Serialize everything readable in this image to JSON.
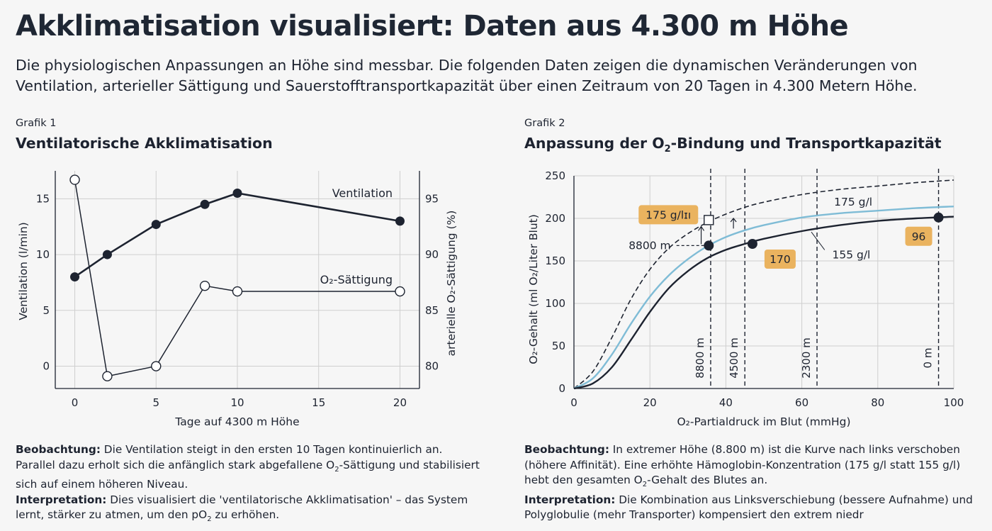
{
  "header": {
    "title": "Akklimatisation visualisiert: Daten aus 4.300 m Höhe",
    "subtitle": "Die physiologischen Anpassungen an Höhe sind messbar. Die folgenden Daten zeigen die dynamischen Veränderungen von Ventilation, arterieller Sättigung und Sauerstofftransportkapazität über einen Zeitraum von 20 Tagen in 4.300 Metern Höhe."
  },
  "figure1": {
    "label": "Grafik 1",
    "title": "Ventilatorische Akklimatisation",
    "caption": {
      "obs_label": "Beobachtung:",
      "obs_text_a": " Die Ventilation steigt in den ersten 10 Tagen kontinuierlich an. Parallel dazu erholt sich die anfänglich stark abgefallene O",
      "obs_sub": "2",
      "obs_text_b": "-Sättigung und stabilisiert sich auf einem höheren Niveau.",
      "int_label": "Interpretation:",
      "int_text_a": " Dies visualisiert die 'ventilatorische Akklimatisation' – das System lernt, stärker zu atmen, um den pO",
      "int_sub": "2",
      "int_text_b": " zu erhöhen."
    }
  },
  "figure2": {
    "label": "Grafik 2",
    "title_a": "Anpassung der O",
    "title_sub": "2",
    "title_b": "-Bindung und Transportkapazität",
    "caption": {
      "obs_label": "Beobachtung:",
      "obs_text_a": " In extremer Höhe (8.800 m) ist die Kurve nach links verschoben (höhere Affinität). Eine erhöhte Hämoglobin-Konzentration (175 g/l statt 155 g/l) hebt den gesamten O",
      "obs_sub": "2",
      "obs_text_b": "-Gehalt des Blutes an.",
      "int_label": "Interpretation:",
      "int_text": " Die Kombination aus Linksverschiebung (bessere Aufnahme) und Polyglobulie (mehr Transporter) kompensiert den extrem niedr"
    }
  },
  "chart_data": [
    {
      "type": "line",
      "xlabel": "Tage auf 4300 m Höhe",
      "ylabel": "Ventilation (l/min)",
      "ylabel_right": "arterielle O₂-Sättigung (%)",
      "xlim": [
        -1.2,
        21.2
      ],
      "ylim": [
        -2,
        17.5
      ],
      "ylim_right": [
        78,
        97.5
      ],
      "xticks": [
        "0",
        "5",
        "10",
        "15",
        "20"
      ],
      "xtick_values": [
        0,
        5,
        10,
        15,
        20
      ],
      "yticks": [
        "0",
        "5",
        "10",
        "15"
      ],
      "ytick_values": [
        0,
        5,
        10,
        15
      ],
      "yticks_right": [
        "80",
        "85",
        "90",
        "95"
      ],
      "ytick_values_right": [
        80,
        85,
        90,
        95
      ],
      "grid": true,
      "series": [
        {
          "name": "Ventilation",
          "axis": "left",
          "marker": "filled",
          "x": [
            0,
            2,
            5,
            8,
            10,
            20
          ],
          "values": [
            8,
            10,
            12.7,
            14.5,
            15.5,
            13
          ]
        },
        {
          "name": "O₂-Sättigung",
          "axis": "right",
          "marker": "open",
          "x": [
            0,
            2,
            5,
            8,
            10,
            20
          ],
          "values": [
            96.7,
            79.1,
            80,
            87.2,
            86.7,
            86.7
          ]
        }
      ]
    },
    {
      "type": "line",
      "xlabel": "O₂-Partialdruck im Blut (mmHg)",
      "ylabel": "O₂-Gehalt (ml O₂/Liter Blut)",
      "xlim": [
        0,
        100
      ],
      "ylim": [
        0,
        250
      ],
      "xticks": [
        "0",
        "20",
        "40",
        "60",
        "80",
        "100"
      ],
      "xtick_values": [
        0,
        20,
        40,
        60,
        80,
        100
      ],
      "yticks": [
        "0",
        "50",
        "100",
        "150",
        "200",
        "250"
      ],
      "ytick_values": [
        0,
        50,
        100,
        150,
        200,
        250
      ],
      "grid": true,
      "series": [
        {
          "name": "",
          "style": "dashed",
          "color": "#1d2330",
          "x": [
            0,
            5,
            10,
            15,
            20,
            25,
            30,
            35,
            40,
            45,
            50,
            60,
            70,
            80,
            90,
            100
          ],
          "values": [
            0,
            20,
            60,
            105,
            140,
            165,
            182,
            195,
            205,
            213,
            219,
            228,
            234,
            238,
            242,
            245
          ]
        },
        {
          "name": "175 g/l",
          "style": "solid",
          "color": "#7fbcd6",
          "x": [
            0,
            5,
            10,
            15,
            20,
            25,
            30,
            35,
            40,
            45,
            50,
            60,
            70,
            80,
            90,
            100
          ],
          "values": [
            0,
            12,
            40,
            76,
            108,
            133,
            152,
            167,
            178,
            186,
            192,
            201,
            206,
            209,
            212,
            214
          ]
        },
        {
          "name": "155 g/l",
          "style": "solid",
          "color": "#1d2330",
          "x": [
            0,
            5,
            10,
            15,
            20,
            25,
            30,
            35,
            40,
            45,
            50,
            60,
            70,
            80,
            90,
            100
          ],
          "values": [
            0,
            6,
            25,
            57,
            90,
            118,
            138,
            153,
            163,
            170,
            176,
            185,
            192,
            197,
            200,
            202
          ]
        }
      ],
      "altitude_markers": [
        {
          "label": "8800 m",
          "x": 36
        },
        {
          "label": "4500 m",
          "x": 45
        },
        {
          "label": "2300 m",
          "x": 64
        },
        {
          "label": "0 m",
          "x": 96
        }
      ],
      "points": [
        {
          "x": 35.5,
          "y": 168,
          "marker": "filled"
        },
        {
          "x": 47,
          "y": 170,
          "marker": "filled",
          "label": "170"
        },
        {
          "x": 96,
          "y": 201,
          "marker": "filled",
          "label": "96"
        },
        {
          "x": 35.5,
          "y": 198,
          "marker": "open-square",
          "label": "175 g/lɪı"
        }
      ],
      "annotations": [
        {
          "text": "8800 m",
          "x": 25.5,
          "y": 168
        },
        {
          "text": "175 g/l",
          "x": 68.5,
          "y": 219
        },
        {
          "text": "155 g/l",
          "x": 68,
          "y": 157
        }
      ],
      "label_color": "#eab35f"
    }
  ]
}
